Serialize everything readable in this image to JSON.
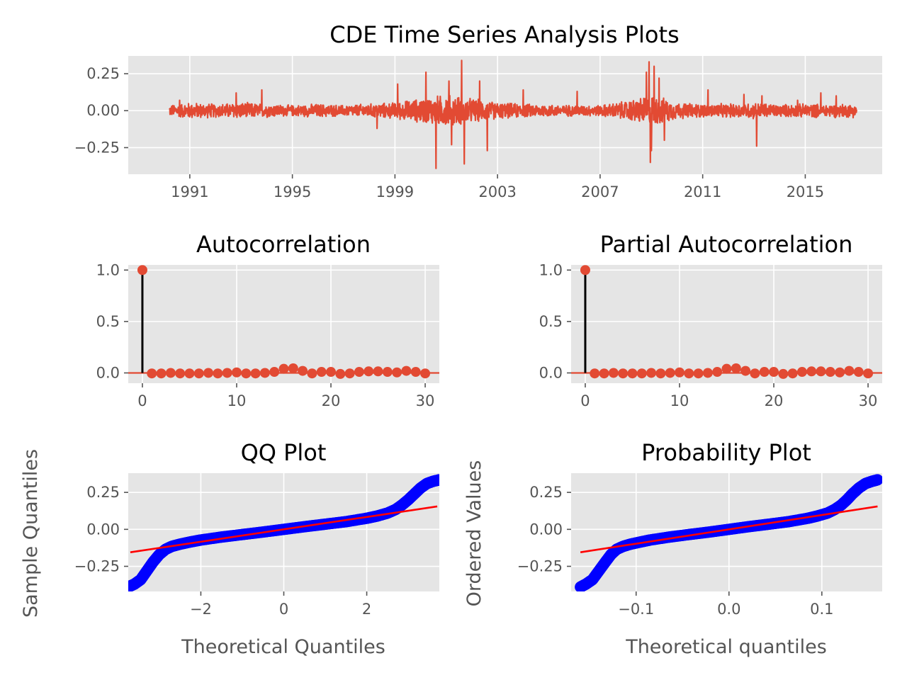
{
  "figure_title": "CDE Time Series Analysis Plots",
  "colors": {
    "panel_bg": "#E5E5E5",
    "grid": "#FFFFFF",
    "series": "#E24A33",
    "stem": "#000000",
    "qq_points": "#0000FF",
    "qq_line": "#FF0000",
    "tick_text": "#555555"
  },
  "chart_data": [
    {
      "id": "returns",
      "type": "line",
      "title": "",
      "xlabel": "",
      "ylabel": "",
      "xlim": [
        1988.6,
        2018.0
      ],
      "ylim": [
        -0.43,
        0.37
      ],
      "xticks": [
        1991,
        1995,
        1999,
        2003,
        2007,
        2011,
        2015
      ],
      "xtick_labels": [
        "1991",
        "1995",
        "1999",
        "2003",
        "2007",
        "2011",
        "2015"
      ],
      "yticks": [
        -0.25,
        0.0,
        0.25
      ],
      "ytick_labels": [
        "−0.25",
        "0.00",
        "0.25"
      ],
      "x_range": [
        1990.2,
        2017.0
      ],
      "envelope": {
        "x": [
          1990.2,
          1991.0,
          1992.0,
          1993.0,
          1994.0,
          1995.0,
          1996.0,
          1997.0,
          1998.0,
          1999.0,
          2000.0,
          2001.0,
          2002.0,
          2003.0,
          2004.0,
          2005.0,
          2006.0,
          2007.0,
          2008.0,
          2009.0,
          2010.0,
          2011.0,
          2012.0,
          2013.0,
          2014.0,
          2015.0,
          2016.0,
          2017.0
        ],
        "amplitude": [
          0.04,
          0.06,
          0.05,
          0.06,
          0.05,
          0.04,
          0.05,
          0.04,
          0.05,
          0.06,
          0.09,
          0.12,
          0.09,
          0.06,
          0.05,
          0.045,
          0.04,
          0.04,
          0.07,
          0.12,
          0.06,
          0.05,
          0.05,
          0.06,
          0.045,
          0.05,
          0.05,
          0.05
        ]
      },
      "spikes": [
        {
          "x": 1990.6,
          "y": 0.07
        },
        {
          "x": 1992.8,
          "y": 0.12
        },
        {
          "x": 1993.8,
          "y": 0.14
        },
        {
          "x": 1998.3,
          "y": -0.12
        },
        {
          "x": 1999.1,
          "y": 0.18
        },
        {
          "x": 2000.2,
          "y": 0.26
        },
        {
          "x": 2000.6,
          "y": -0.39
        },
        {
          "x": 2001.1,
          "y": 0.2
        },
        {
          "x": 2001.2,
          "y": -0.23
        },
        {
          "x": 2001.6,
          "y": 0.34
        },
        {
          "x": 2001.7,
          "y": -0.36
        },
        {
          "x": 2002.6,
          "y": -0.27
        },
        {
          "x": 2002.3,
          "y": 0.2
        },
        {
          "x": 2004.0,
          "y": 0.14
        },
        {
          "x": 2006.1,
          "y": 0.13
        },
        {
          "x": 2008.8,
          "y": 0.26
        },
        {
          "x": 2008.9,
          "y": 0.33
        },
        {
          "x": 2008.95,
          "y": -0.35
        },
        {
          "x": 2009.0,
          "y": -0.27
        },
        {
          "x": 2009.1,
          "y": 0.3
        },
        {
          "x": 2009.3,
          "y": 0.22
        },
        {
          "x": 2009.5,
          "y": -0.2
        },
        {
          "x": 2011.2,
          "y": 0.14
        },
        {
          "x": 2012.6,
          "y": 0.11
        },
        {
          "x": 2013.1,
          "y": -0.24
        },
        {
          "x": 2013.3,
          "y": 0.1
        },
        {
          "x": 2014.7,
          "y": 0.07
        },
        {
          "x": 2015.6,
          "y": 0.12
        },
        {
          "x": 2016.2,
          "y": 0.1
        }
      ]
    },
    {
      "id": "acf",
      "type": "stem",
      "title": "Autocorrelation",
      "xlabel": "",
      "ylabel": "",
      "xlim": [
        -1.5,
        31.5
      ],
      "ylim": [
        -0.1,
        1.05
      ],
      "xticks": [
        0,
        10,
        20,
        30
      ],
      "xtick_labels": [
        "0",
        "10",
        "20",
        "30"
      ],
      "yticks": [
        0.0,
        0.5,
        1.0
      ],
      "ytick_labels": [
        "0.0",
        "0.5",
        "1.0"
      ],
      "lags": [
        0,
        1,
        2,
        3,
        4,
        5,
        6,
        7,
        8,
        9,
        10,
        11,
        12,
        13,
        14,
        15,
        16,
        17,
        18,
        19,
        20,
        21,
        22,
        23,
        24,
        25,
        26,
        27,
        28,
        29,
        30
      ],
      "values": [
        1.0,
        -0.005,
        -0.005,
        0.0,
        -0.005,
        -0.005,
        -0.005,
        0.0,
        -0.005,
        0.0,
        0.005,
        -0.005,
        -0.005,
        0.0,
        0.01,
        0.04,
        0.045,
        0.02,
        -0.005,
        0.01,
        0.01,
        -0.01,
        -0.005,
        0.01,
        0.015,
        0.015,
        0.01,
        0.005,
        0.02,
        0.01,
        -0.005
      ]
    },
    {
      "id": "pacf",
      "type": "stem",
      "title": "Partial Autocorrelation",
      "xlabel": "",
      "ylabel": "",
      "xlim": [
        -1.5,
        31.5
      ],
      "ylim": [
        -0.1,
        1.05
      ],
      "xticks": [
        0,
        10,
        20,
        30
      ],
      "xtick_labels": [
        "0",
        "10",
        "20",
        "30"
      ],
      "yticks": [
        0.0,
        0.5,
        1.0
      ],
      "ytick_labels": [
        "0.0",
        "0.5",
        "1.0"
      ],
      "lags": [
        0,
        1,
        2,
        3,
        4,
        5,
        6,
        7,
        8,
        9,
        10,
        11,
        12,
        13,
        14,
        15,
        16,
        17,
        18,
        19,
        20,
        21,
        22,
        23,
        24,
        25,
        26,
        27,
        28,
        29,
        30
      ],
      "values": [
        1.0,
        -0.005,
        -0.005,
        0.0,
        -0.005,
        -0.005,
        -0.005,
        0.0,
        -0.005,
        0.0,
        0.005,
        -0.005,
        -0.005,
        0.0,
        0.01,
        0.04,
        0.045,
        0.02,
        -0.005,
        0.01,
        0.01,
        -0.01,
        -0.005,
        0.01,
        0.015,
        0.015,
        0.01,
        0.005,
        0.02,
        0.01,
        -0.005
      ]
    },
    {
      "id": "qq",
      "type": "scatter",
      "title": "QQ Plot",
      "xlabel": "Theoretical Quantiles",
      "ylabel": "Sample Quantiles",
      "xlim": [
        -3.75,
        3.75
      ],
      "ylim": [
        -0.42,
        0.38
      ],
      "xticks": [
        -2,
        0,
        2
      ],
      "xtick_labels": [
        "−2",
        "0",
        "2"
      ],
      "yticks": [
        -0.25,
        0.0,
        0.25
      ],
      "ytick_labels": [
        "−0.25",
        "0.00",
        "0.25"
      ],
      "points": {
        "x": [
          -3.75,
          -3.6,
          -3.45,
          -3.3,
          -3.15,
          -3.0,
          -2.85,
          -2.7,
          -2.5,
          -2.25,
          -2.0,
          -1.5,
          -1.0,
          -0.5,
          0.0,
          0.5,
          1.0,
          1.5,
          2.0,
          2.25,
          2.5,
          2.7,
          2.85,
          3.0,
          3.15,
          3.3,
          3.45,
          3.6,
          3.75
        ],
        "y": [
          -0.39,
          -0.37,
          -0.34,
          -0.28,
          -0.22,
          -0.17,
          -0.135,
          -0.115,
          -0.1,
          -0.085,
          -0.072,
          -0.052,
          -0.035,
          -0.018,
          0.0,
          0.018,
          0.035,
          0.052,
          0.075,
          0.09,
          0.11,
          0.135,
          0.165,
          0.2,
          0.24,
          0.28,
          0.31,
          0.325,
          0.335
        ]
      },
      "fit_line": {
        "x": [
          -3.7,
          3.7
        ],
        "y": [
          -0.155,
          0.155
        ]
      }
    },
    {
      "id": "prob",
      "type": "scatter",
      "title": "Probability Plot",
      "xlabel": "Theoretical quantiles",
      "ylabel": "Ordered Values",
      "xlim": [
        -0.17,
        0.165
      ],
      "ylim": [
        -0.42,
        0.38
      ],
      "xticks": [
        -0.1,
        0.0,
        0.1
      ],
      "xtick_labels": [
        "−0.1",
        "0.0",
        "0.1"
      ],
      "yticks": [
        -0.25,
        0.0,
        0.25
      ],
      "ytick_labels": [
        "−0.25",
        "0.00",
        "0.25"
      ],
      "points": {
        "x": [
          -0.16,
          -0.154,
          -0.147,
          -0.14,
          -0.133,
          -0.127,
          -0.121,
          -0.114,
          -0.106,
          -0.095,
          -0.085,
          -0.064,
          -0.043,
          -0.021,
          0.0,
          0.021,
          0.043,
          0.064,
          0.085,
          0.095,
          0.106,
          0.114,
          0.121,
          0.127,
          0.133,
          0.14,
          0.147,
          0.154,
          0.16
        ],
        "y": [
          -0.39,
          -0.37,
          -0.34,
          -0.28,
          -0.22,
          -0.17,
          -0.135,
          -0.115,
          -0.1,
          -0.085,
          -0.072,
          -0.052,
          -0.035,
          -0.018,
          0.0,
          0.018,
          0.035,
          0.052,
          0.075,
          0.09,
          0.11,
          0.135,
          0.165,
          0.2,
          0.24,
          0.28,
          0.31,
          0.325,
          0.335
        ]
      },
      "fit_line": {
        "x": [
          -0.16,
          0.16
        ],
        "y": [
          -0.155,
          0.155
        ]
      }
    }
  ]
}
